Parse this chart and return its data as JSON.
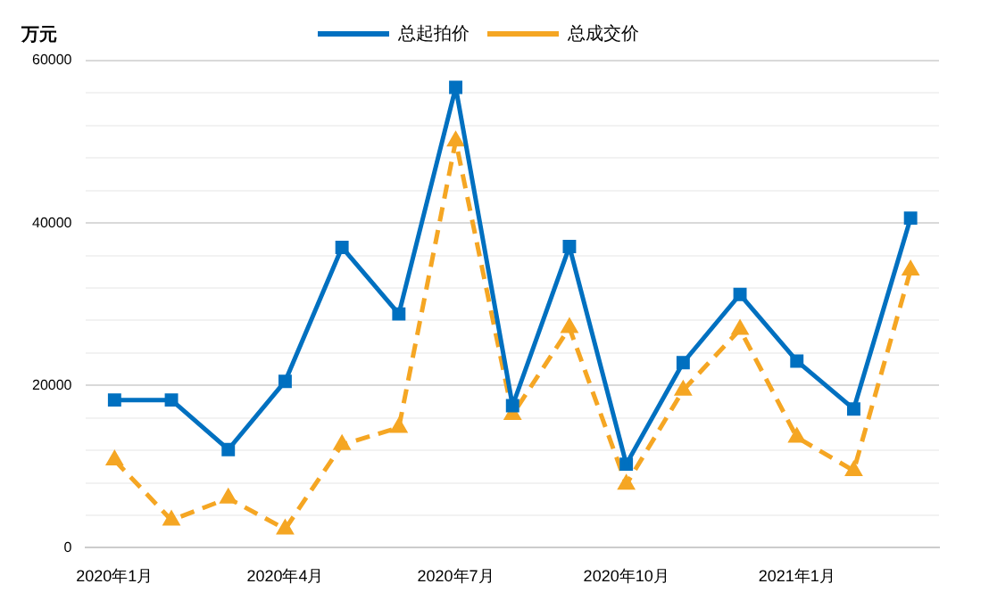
{
  "chart_data": {
    "type": "line",
    "ylabel": "万元",
    "categories": [
      "2020年1月",
      null,
      null,
      "2020年4月",
      null,
      null,
      "2020年7月",
      null,
      null,
      "2020年10月",
      null,
      null,
      "2021年1月",
      null,
      null
    ],
    "ylim": [
      0,
      60000
    ],
    "yticks": [
      0,
      {
        "value": 4000,
        "label": null
      },
      {
        "value": 8000,
        "label": null
      },
      {
        "value": 12000,
        "label": null
      },
      {
        "value": 16000,
        "label": null
      },
      20000,
      {
        "value": 24000,
        "label": null
      },
      {
        "value": 28000,
        "label": null
      },
      {
        "value": 32000,
        "label": null
      },
      {
        "value": 36000,
        "label": null
      },
      40000,
      {
        "value": 44000,
        "label": null
      },
      {
        "value": 48000,
        "label": null
      },
      {
        "value": 52000,
        "label": null
      },
      {
        "value": 56000,
        "label": null
      },
      60000
    ],
    "grid": "y",
    "legend": "top",
    "series": [
      {
        "name": "总起拍价",
        "color": "#0070c0",
        "marker": "square",
        "line_style": "solid",
        "values": [
          18200,
          18200,
          12100,
          20500,
          37000,
          28800,
          56700,
          17500,
          37100,
          10300,
          22800,
          31200,
          23000,
          17100,
          40600
        ]
      },
      {
        "name": "总成交价",
        "color": "#f5a623",
        "marker": "triangle",
        "line_style": "dashed",
        "values": [
          10800,
          3400,
          6100,
          2300,
          12700,
          14800,
          50100,
          16400,
          27100,
          7800,
          19400,
          26900,
          13600,
          9500,
          34200
        ]
      }
    ]
  }
}
